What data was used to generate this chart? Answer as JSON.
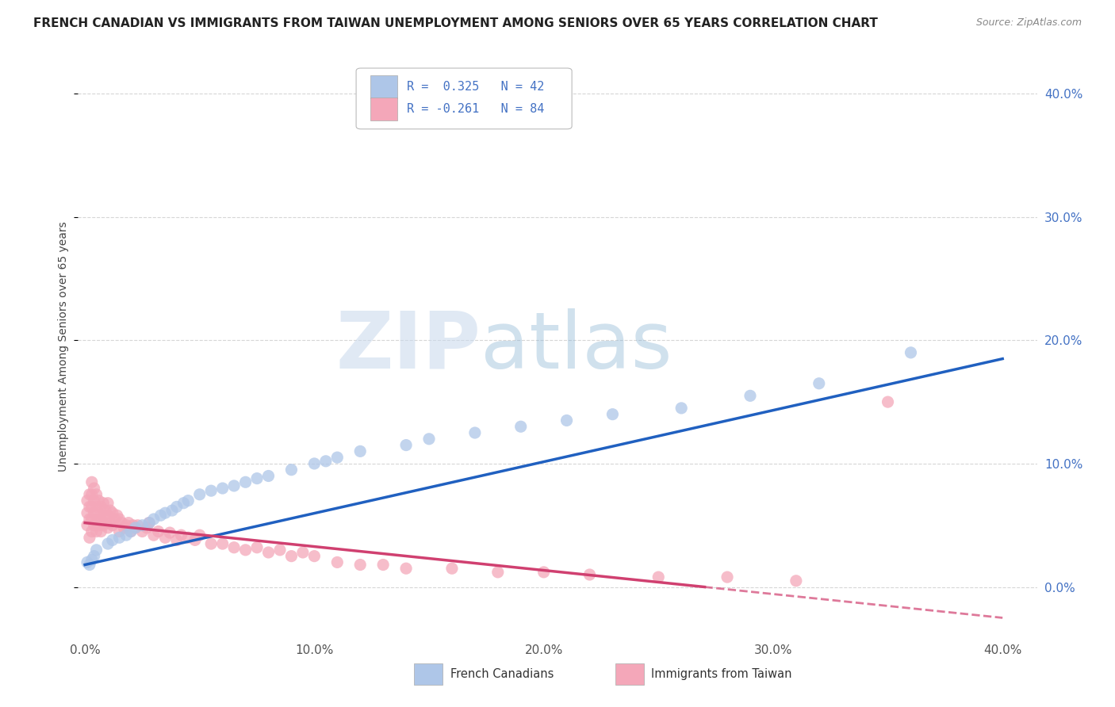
{
  "title": "FRENCH CANADIAN VS IMMIGRANTS FROM TAIWAN UNEMPLOYMENT AMONG SENIORS OVER 65 YEARS CORRELATION CHART",
  "source": "Source: ZipAtlas.com",
  "ylabel": "Unemployment Among Seniors over 65 years",
  "legend1_label": "R =  0.325   N = 42",
  "legend2_label": "R = -0.261   N = 84",
  "watermark_zip": "ZIP",
  "watermark_atlas": "atlas",
  "series1_color": "#aec6e8",
  "series2_color": "#f4a7b9",
  "line1_color": "#2060c0",
  "line2_color": "#d04070",
  "background_color": "#ffffff",
  "title_color": "#222222",
  "source_color": "#888888",
  "tick_color_x": "#555555",
  "tick_color_y": "#4472c4",
  "grid_color": "#cccccc",
  "legend_edge_color": "#bbbbbb",
  "bottom_legend_label1": "French Canadians",
  "bottom_legend_label2": "Immigrants from Taiwan",
  "french_canadian_x": [
    0.001,
    0.002,
    0.003,
    0.004,
    0.005,
    0.01,
    0.012,
    0.015,
    0.018,
    0.02,
    0.022,
    0.025,
    0.028,
    0.03,
    0.033,
    0.035,
    0.038,
    0.04,
    0.043,
    0.045,
    0.05,
    0.055,
    0.06,
    0.065,
    0.07,
    0.075,
    0.08,
    0.09,
    0.1,
    0.105,
    0.11,
    0.12,
    0.14,
    0.15,
    0.17,
    0.19,
    0.21,
    0.23,
    0.26,
    0.29,
    0.32,
    0.36
  ],
  "french_canadian_y": [
    0.02,
    0.018,
    0.022,
    0.025,
    0.03,
    0.035,
    0.038,
    0.04,
    0.042,
    0.045,
    0.048,
    0.05,
    0.052,
    0.055,
    0.058,
    0.06,
    0.062,
    0.065,
    0.068,
    0.07,
    0.075,
    0.078,
    0.08,
    0.082,
    0.085,
    0.088,
    0.09,
    0.095,
    0.1,
    0.102,
    0.105,
    0.11,
    0.115,
    0.12,
    0.125,
    0.13,
    0.135,
    0.14,
    0.145,
    0.155,
    0.165,
    0.19
  ],
  "taiwan_x": [
    0.001,
    0.001,
    0.001,
    0.002,
    0.002,
    0.002,
    0.002,
    0.003,
    0.003,
    0.003,
    0.003,
    0.003,
    0.004,
    0.004,
    0.004,
    0.004,
    0.005,
    0.005,
    0.005,
    0.005,
    0.006,
    0.006,
    0.006,
    0.007,
    0.007,
    0.007,
    0.008,
    0.008,
    0.008,
    0.009,
    0.009,
    0.01,
    0.01,
    0.01,
    0.011,
    0.011,
    0.012,
    0.012,
    0.013,
    0.014,
    0.015,
    0.015,
    0.016,
    0.017,
    0.018,
    0.019,
    0.02,
    0.021,
    0.022,
    0.023,
    0.025,
    0.027,
    0.028,
    0.03,
    0.032,
    0.035,
    0.037,
    0.04,
    0.042,
    0.045,
    0.048,
    0.05,
    0.055,
    0.06,
    0.065,
    0.07,
    0.075,
    0.08,
    0.085,
    0.09,
    0.095,
    0.1,
    0.11,
    0.12,
    0.13,
    0.14,
    0.16,
    0.18,
    0.2,
    0.22,
    0.25,
    0.28,
    0.31,
    0.35
  ],
  "taiwan_y": [
    0.05,
    0.06,
    0.07,
    0.04,
    0.055,
    0.065,
    0.075,
    0.045,
    0.055,
    0.065,
    0.075,
    0.085,
    0.05,
    0.06,
    0.07,
    0.08,
    0.045,
    0.055,
    0.065,
    0.075,
    0.05,
    0.06,
    0.07,
    0.045,
    0.055,
    0.065,
    0.05,
    0.058,
    0.068,
    0.052,
    0.062,
    0.048,
    0.058,
    0.068,
    0.052,
    0.062,
    0.05,
    0.06,
    0.055,
    0.058,
    0.045,
    0.055,
    0.052,
    0.048,
    0.05,
    0.052,
    0.045,
    0.05,
    0.048,
    0.05,
    0.045,
    0.048,
    0.052,
    0.042,
    0.045,
    0.04,
    0.044,
    0.038,
    0.042,
    0.04,
    0.038,
    0.042,
    0.035,
    0.035,
    0.032,
    0.03,
    0.032,
    0.028,
    0.03,
    0.025,
    0.028,
    0.025,
    0.02,
    0.018,
    0.018,
    0.015,
    0.015,
    0.012,
    0.012,
    0.01,
    0.008,
    0.008,
    0.005,
    0.15
  ],
  "xlim_min": -0.003,
  "xlim_max": 0.415,
  "ylim_min": -0.04,
  "ylim_max": 0.43,
  "xtick_vals": [
    0.0,
    0.1,
    0.2,
    0.3,
    0.4
  ],
  "ytick_vals": [
    0.0,
    0.1,
    0.2,
    0.3,
    0.4
  ],
  "fc_line_x0": 0.0,
  "fc_line_x1": 0.4,
  "fc_line_y0": 0.018,
  "fc_line_y1": 0.185,
  "tw_line_x0": 0.0,
  "tw_line_x1": 0.4,
  "tw_line_y0": 0.052,
  "tw_line_y1": -0.025
}
